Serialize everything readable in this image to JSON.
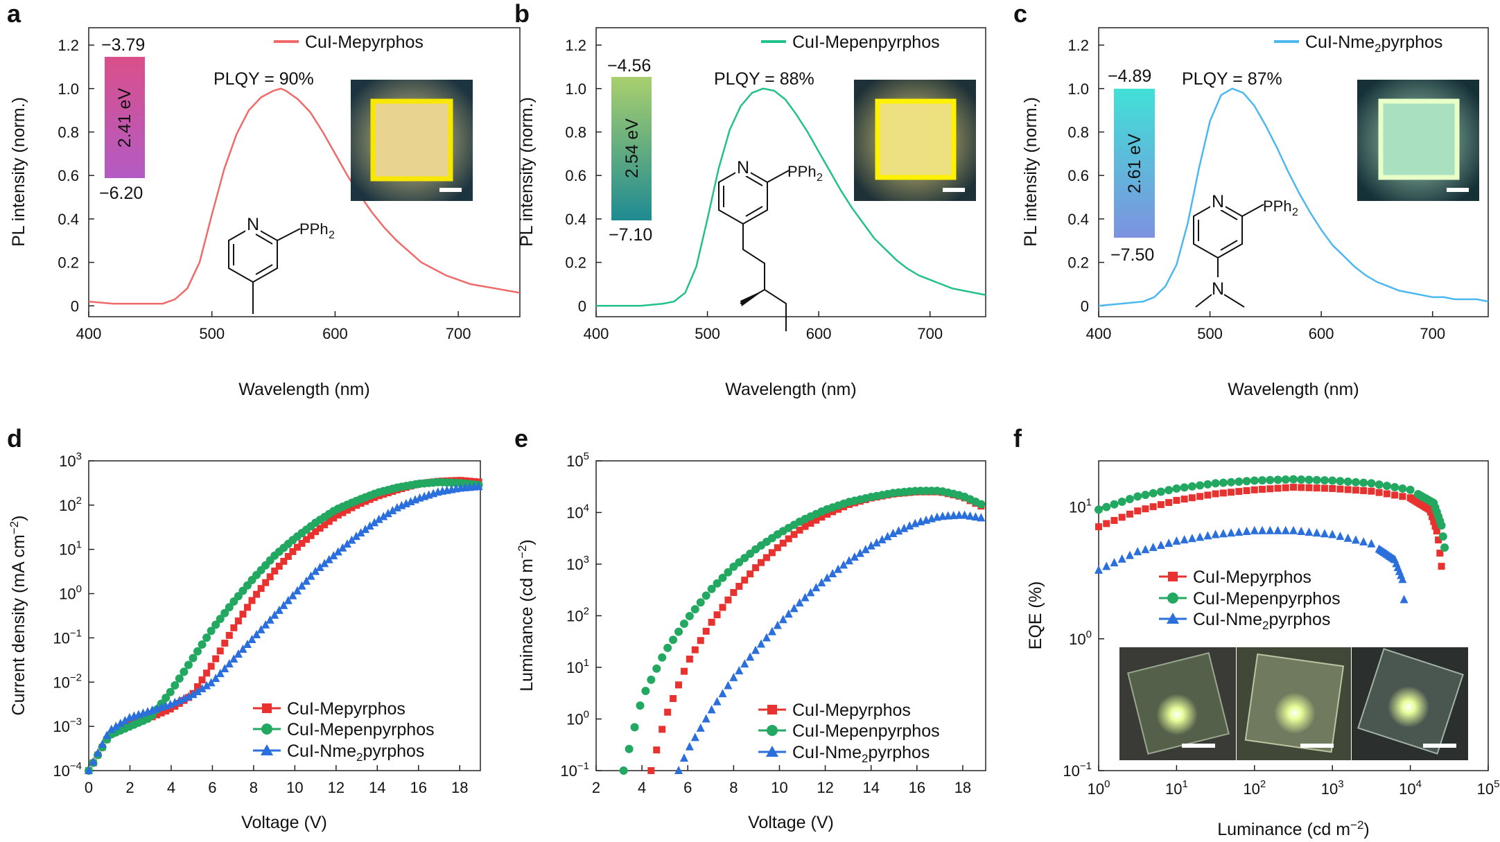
{
  "colors": {
    "red": "#e8322f",
    "green": "#22a860",
    "blue": "#2a6fdc",
    "line_a": "#f06a6a",
    "line_b": "#22c08a",
    "line_c": "#4cb8f0"
  },
  "panels": {
    "a": {
      "letter": "a",
      "legend": "CuI-Mepyrphos",
      "plqy": "PLQY = 90%",
      "lumo": "−3.79",
      "homo": "−6.20",
      "gap": "2.41 eV",
      "label_n": "N",
      "label_pph2": "PPh",
      "label_sub": "2"
    },
    "b": {
      "letter": "b",
      "legend": "CuI-Mepenpyrphos",
      "plqy": "PLQY = 88%",
      "lumo": "−4.56",
      "homo": "−7.10",
      "gap": "2.54 eV",
      "label_n": "N",
      "label_pph2": "PPh",
      "label_sub": "2"
    },
    "c": {
      "letter": "c",
      "legend_pre": "CuI-Nme",
      "legend_sub": "2",
      "legend_post": "pyrphos",
      "plqy": "PLQY = 87%",
      "lumo": "−4.89",
      "homo": "−7.50",
      "gap": "2.61 eV",
      "label_n": "N",
      "label_pph2": "PPh",
      "label_sub": "2",
      "label_n2": "N"
    },
    "d": {
      "letter": "d"
    },
    "e": {
      "letter": "e"
    },
    "f": {
      "letter": "f"
    }
  },
  "common": {
    "pl_ylabel": "PL intensity (norm.)",
    "pl_xlabel": "Wavelength (nm)",
    "voltage_xlabel": "Voltage (V)",
    "jd_ylabel": "Current density (mA cm",
    "lum_ylabel": "Luminance (cd m",
    "eqe_ylabel": "EQE (%)",
    "lum_xlabel": "Luminance (cd m",
    "unit_exp": "−2",
    "unit_close": ")",
    "series1": "CuI-Mepyrphos",
    "series2": "CuI-Mepenpyrphos",
    "series3_pre": "CuI-Nme",
    "series3_sub": "2",
    "series3_post": "pyrphos"
  },
  "chart_data": [
    {
      "panel": "a",
      "type": "line",
      "xlabel": "Wavelength (nm)",
      "ylabel": "PL intensity (norm.)",
      "xlim": [
        400,
        750
      ],
      "ylim": [
        -0.05,
        1.28
      ],
      "xticks": [
        400,
        500,
        600,
        700
      ],
      "yticks": [
        0,
        0.2,
        0.4,
        0.6,
        0.8,
        1.0,
        1.2
      ],
      "series": [
        {
          "name": "CuI-Mepyrphos",
          "x": [
            400,
            420,
            440,
            460,
            470,
            480,
            490,
            500,
            510,
            520,
            530,
            540,
            550,
            556,
            560,
            570,
            580,
            590,
            600,
            610,
            620,
            630,
            640,
            650,
            660,
            670,
            680,
            690,
            700,
            710,
            720,
            730,
            740,
            750
          ],
          "y": [
            0.02,
            0.01,
            0.01,
            0.01,
            0.03,
            0.08,
            0.2,
            0.42,
            0.63,
            0.79,
            0.9,
            0.96,
            0.99,
            1.0,
            0.99,
            0.95,
            0.89,
            0.8,
            0.7,
            0.6,
            0.51,
            0.43,
            0.36,
            0.3,
            0.25,
            0.2,
            0.17,
            0.14,
            0.12,
            0.1,
            0.09,
            0.08,
            0.07,
            0.06
          ]
        }
      ]
    },
    {
      "panel": "b",
      "type": "line",
      "xlabel": "Wavelength (nm)",
      "ylabel": "PL intensity (norm.)",
      "xlim": [
        400,
        750
      ],
      "ylim": [
        -0.05,
        1.28
      ],
      "xticks": [
        400,
        500,
        600,
        700
      ],
      "yticks": [
        0,
        0.2,
        0.4,
        0.6,
        0.8,
        1.0,
        1.2
      ],
      "series": [
        {
          "name": "CuI-Mepenpyrphos",
          "x": [
            400,
            420,
            440,
            460,
            470,
            480,
            490,
            500,
            510,
            520,
            530,
            540,
            550,
            560,
            570,
            580,
            590,
            600,
            610,
            620,
            630,
            640,
            650,
            660,
            670,
            680,
            690,
            700,
            710,
            720,
            730,
            740,
            750
          ],
          "y": [
            0.0,
            0.0,
            0.0,
            0.01,
            0.02,
            0.06,
            0.18,
            0.4,
            0.63,
            0.81,
            0.92,
            0.98,
            1.0,
            0.99,
            0.95,
            0.88,
            0.8,
            0.71,
            0.62,
            0.53,
            0.45,
            0.38,
            0.31,
            0.26,
            0.21,
            0.17,
            0.14,
            0.12,
            0.1,
            0.08,
            0.07,
            0.06,
            0.05
          ]
        }
      ]
    },
    {
      "panel": "c",
      "type": "line",
      "xlabel": "Wavelength (nm)",
      "ylabel": "PL intensity (norm.)",
      "xlim": [
        400,
        750
      ],
      "ylim": [
        -0.05,
        1.28
      ],
      "xticks": [
        400,
        500,
        600,
        700
      ],
      "yticks": [
        0,
        0.2,
        0.4,
        0.6,
        0.8,
        1.0,
        1.2
      ],
      "series": [
        {
          "name": "CuI-Nme2pyrphos",
          "x": [
            400,
            420,
            440,
            450,
            460,
            470,
            480,
            490,
            500,
            510,
            520,
            530,
            540,
            550,
            560,
            570,
            580,
            590,
            600,
            610,
            620,
            630,
            640,
            650,
            660,
            670,
            680,
            690,
            700,
            710,
            720,
            730,
            740,
            750
          ],
          "y": [
            0.0,
            0.01,
            0.02,
            0.04,
            0.09,
            0.19,
            0.38,
            0.63,
            0.85,
            0.97,
            1.0,
            0.98,
            0.92,
            0.83,
            0.73,
            0.62,
            0.52,
            0.43,
            0.35,
            0.28,
            0.23,
            0.18,
            0.14,
            0.11,
            0.09,
            0.07,
            0.06,
            0.05,
            0.04,
            0.04,
            0.03,
            0.03,
            0.03,
            0.02
          ]
        }
      ]
    },
    {
      "panel": "d",
      "type": "scatter",
      "xlabel": "Voltage (V)",
      "ylabel": "Current density (mA cm−2)",
      "xlim": [
        0,
        19
      ],
      "ylim_log10": [
        -4,
        3
      ],
      "xticks": [
        0,
        2,
        4,
        6,
        8,
        10,
        12,
        14,
        16,
        18
      ],
      "yticks_exp": [
        -4,
        -3,
        -2,
        -1,
        0,
        1,
        2,
        3
      ],
      "series": [
        {
          "name": "CuI-Mepyrphos",
          "marker": "square",
          "x": [
            0,
            1,
            2,
            3,
            4,
            5,
            6,
            7,
            8,
            9,
            10,
            11,
            12,
            13,
            14,
            15,
            16,
            17,
            18,
            19
          ],
          "log10y": [
            -4,
            -3.2,
            -2.9,
            -2.8,
            -2.6,
            -2.3,
            -1.6,
            -0.8,
            -0.1,
            0.5,
            1.0,
            1.4,
            1.75,
            2.0,
            2.2,
            2.35,
            2.48,
            2.54,
            2.56,
            2.52
          ]
        },
        {
          "name": "CuI-Mepenpyrphos",
          "marker": "circle",
          "x": [
            0,
            1,
            2,
            3,
            4,
            5,
            6,
            7,
            8,
            9,
            10,
            11,
            12,
            13,
            14,
            15,
            16,
            17,
            18,
            19
          ],
          "log10y": [
            -4,
            -3.2,
            -3.0,
            -2.8,
            -2.2,
            -1.5,
            -0.8,
            -0.2,
            0.35,
            0.85,
            1.25,
            1.6,
            1.9,
            2.1,
            2.28,
            2.4,
            2.48,
            2.52,
            2.5,
            2.45
          ]
        },
        {
          "name": "CuI-Nme2pyrphos",
          "marker": "triangle",
          "x": [
            0,
            1,
            2,
            3,
            4,
            5,
            6,
            7,
            8,
            9,
            10,
            11,
            12,
            13,
            14,
            15,
            16,
            17,
            18,
            19
          ],
          "log10y": [
            -4,
            -3.1,
            -2.8,
            -2.65,
            -2.5,
            -2.3,
            -2.0,
            -1.5,
            -1.0,
            -0.5,
            0,
            0.5,
            0.9,
            1.3,
            1.65,
            1.95,
            2.15,
            2.3,
            2.38,
            2.42
          ]
        }
      ]
    },
    {
      "panel": "e",
      "type": "scatter",
      "xlabel": "Voltage (V)",
      "ylabel": "Luminance (cd m−2)",
      "xlim": [
        2,
        19
      ],
      "ylim_log10": [
        -1,
        5
      ],
      "xticks": [
        2,
        4,
        6,
        8,
        10,
        12,
        14,
        16,
        18
      ],
      "yticks_exp": [
        -1,
        0,
        1,
        2,
        3,
        4,
        5
      ],
      "series": [
        {
          "name": "CuI-Mepyrphos",
          "marker": "square",
          "x": [
            4.4,
            5,
            6,
            7,
            8,
            9,
            10,
            11,
            12,
            13,
            14,
            15,
            16,
            17,
            18,
            19
          ],
          "log10y": [
            -1,
            0.0,
            1.1,
            1.85,
            2.45,
            2.95,
            3.35,
            3.7,
            3.95,
            4.15,
            4.28,
            4.36,
            4.4,
            4.4,
            4.3,
            4.08
          ]
        },
        {
          "name": "CuI-Mepenpyrphos",
          "marker": "circle",
          "x": [
            3.2,
            4,
            5,
            6,
            7,
            8,
            9,
            10,
            11,
            12,
            13,
            14,
            15,
            16,
            17,
            18,
            19
          ],
          "log10y": [
            -1,
            0.4,
            1.3,
            1.95,
            2.5,
            2.95,
            3.3,
            3.6,
            3.85,
            4.05,
            4.2,
            4.3,
            4.38,
            4.42,
            4.42,
            4.32,
            4.12
          ]
        },
        {
          "name": "CuI-Nme2pyrphos",
          "marker": "triangle",
          "x": [
            5.6,
            6,
            7,
            8,
            9,
            10,
            11,
            12,
            13,
            14,
            15,
            16,
            17,
            18,
            19
          ],
          "log10y": [
            -1,
            -0.6,
            0.15,
            0.8,
            1.35,
            1.85,
            2.3,
            2.7,
            3.05,
            3.35,
            3.6,
            3.8,
            3.92,
            3.95,
            3.88
          ]
        }
      ]
    },
    {
      "panel": "f",
      "type": "scatter",
      "xlabel": "Luminance (cd m−2)",
      "ylabel": "EQE (%)",
      "xlim_log10": [
        0,
        5
      ],
      "ylim_log10": [
        -1,
        1.35
      ],
      "xticks_exp": [
        0,
        1,
        2,
        3,
        4,
        5
      ],
      "yticks_exp": [
        -1,
        0,
        1
      ],
      "series": [
        {
          "name": "CuI-Mepyrphos",
          "marker": "square",
          "log10x": [
            0,
            0.5,
            1,
            1.5,
            2,
            2.5,
            3,
            3.5,
            4,
            4.25,
            4.35,
            4.4
          ],
          "log10y": [
            0.85,
            0.97,
            1.05,
            1.1,
            1.13,
            1.15,
            1.14,
            1.12,
            1.07,
            0.98,
            0.8,
            0.55
          ]
        },
        {
          "name": "CuI-Mepenpyrphos",
          "marker": "circle",
          "log10x": [
            0,
            0.5,
            1,
            1.5,
            2,
            2.5,
            3,
            3.5,
            4,
            4.3,
            4.4,
            4.45
          ],
          "log10y": [
            0.98,
            1.08,
            1.14,
            1.18,
            1.2,
            1.21,
            1.2,
            1.18,
            1.13,
            1.03,
            0.86,
            0.65
          ]
        },
        {
          "name": "CuI-Nme2pyrphos",
          "marker": "triangle",
          "log10x": [
            0,
            0.5,
            1,
            1.5,
            2,
            2.5,
            3,
            3.5,
            3.8,
            3.9,
            3.93
          ],
          "log10y": [
            0.52,
            0.66,
            0.74,
            0.79,
            0.82,
            0.82,
            0.79,
            0.72,
            0.6,
            0.45,
            0.22
          ]
        }
      ]
    }
  ]
}
